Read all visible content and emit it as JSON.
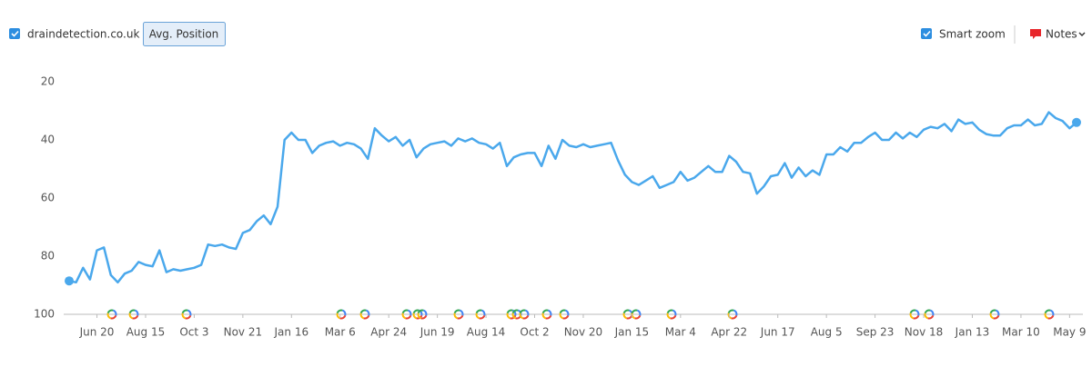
{
  "toolbar": {
    "domain": "draindetection.co.uk",
    "metric": "Avg. Position",
    "smart_zoom": "Smart zoom",
    "notes": "Notes"
  },
  "chart_data": {
    "type": "line",
    "categories": [
      null,
      null,
      null,
      null,
      "Jun 20",
      null,
      null,
      null,
      null,
      null,
      null,
      "Aug 15",
      null,
      null,
      null,
      null,
      null,
      null,
      "Oct 3",
      null,
      null,
      null,
      null,
      null,
      null,
      "Nov 21",
      null,
      null,
      null,
      null,
      null,
      null,
      "Jan 16",
      null,
      null,
      null,
      null,
      null,
      null,
      "Mar 6",
      null,
      null,
      null,
      null,
      null,
      null,
      "Apr 24",
      null,
      null,
      null,
      null,
      null,
      null,
      "Jun 19",
      null,
      null,
      null,
      null,
      null,
      null,
      "Aug 14",
      null,
      null,
      null,
      null,
      null,
      null,
      "Oct 2",
      null,
      null,
      null,
      null,
      null,
      null,
      "Nov 20",
      null,
      null,
      null,
      null,
      null,
      null,
      "Jan 15",
      null,
      null,
      null,
      null,
      null,
      null,
      "Mar 4",
      null,
      null,
      null,
      null,
      null,
      null,
      "Apr 22",
      null,
      null,
      null,
      null,
      null,
      null,
      "Jun 17",
      null,
      null,
      null,
      null,
      null,
      null,
      "Aug 5",
      null,
      null,
      null,
      null,
      null,
      null,
      "Sep 23",
      null,
      null,
      null,
      null,
      null,
      null,
      "Nov 18",
      null,
      null,
      null,
      null,
      null,
      null,
      "Jan 13",
      null,
      null,
      null,
      null,
      null,
      null,
      "Mar 10",
      null,
      null,
      null,
      null,
      null,
      null,
      "May 9",
      null
    ],
    "series": [
      {
        "name": "draindetection.co.uk",
        "color": "#4aa8ec",
        "values": [
          88.5,
          89,
          84,
          88,
          78,
          77,
          86.5,
          89,
          86,
          85,
          82,
          83,
          83.5,
          78,
          85.5,
          84.5,
          85,
          84.5,
          84,
          83,
          76,
          76.5,
          76,
          77,
          77.5,
          72,
          71,
          68,
          66,
          69,
          63,
          40,
          37.5,
          40,
          40,
          44.5,
          42,
          41,
          40.5,
          42,
          41,
          41.5,
          43,
          46.5,
          36,
          38.5,
          40.5,
          39,
          42,
          40,
          46,
          43,
          41.5,
          41,
          40.5,
          42,
          39.5,
          40.5,
          39.5,
          41,
          41.5,
          43,
          41,
          49,
          46,
          45,
          44.5,
          44.5,
          49,
          42,
          46.5,
          40,
          42,
          42.5,
          41.5,
          42.5,
          42,
          41.5,
          41,
          47,
          52,
          54.5,
          55.5,
          54,
          52.5,
          56.5,
          55.5,
          54.5,
          51,
          54,
          53,
          51,
          49,
          51,
          51,
          45.5,
          47.5,
          51,
          51.5,
          58.5,
          56,
          52.5,
          52,
          48,
          53,
          49.5,
          52.5,
          50.5,
          52,
          45,
          45,
          42.5,
          44,
          41,
          41,
          39,
          37.5,
          40,
          40,
          37.5,
          39.5,
          37.5,
          39,
          36.5,
          35.5,
          36,
          34.5,
          37,
          33,
          34.5,
          34,
          36.5,
          38,
          38.5,
          38.5,
          36,
          35,
          35,
          33,
          35,
          34.5,
          30.5,
          32.5,
          33.5,
          36,
          34
        ]
      }
    ],
    "ylim": [
      100,
      20
    ],
    "yticks": [
      20,
      40,
      60,
      80,
      100
    ]
  }
}
